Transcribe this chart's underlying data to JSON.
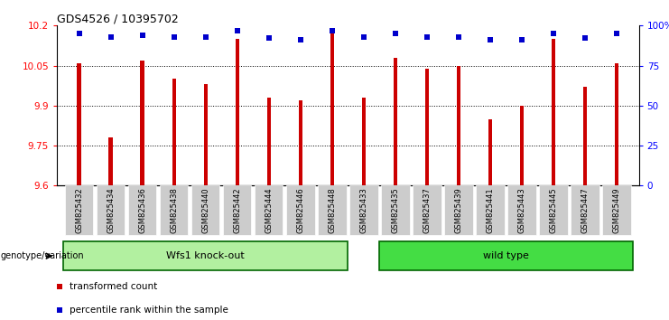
{
  "title": "GDS4526 / 10395702",
  "samples": [
    "GSM825432",
    "GSM825434",
    "GSM825436",
    "GSM825438",
    "GSM825440",
    "GSM825442",
    "GSM825444",
    "GSM825446",
    "GSM825448",
    "GSM825433",
    "GSM825435",
    "GSM825437",
    "GSM825439",
    "GSM825441",
    "GSM825443",
    "GSM825445",
    "GSM825447",
    "GSM825449"
  ],
  "transformed_counts": [
    10.06,
    9.78,
    10.07,
    10.0,
    9.98,
    10.15,
    9.93,
    9.92,
    10.19,
    9.93,
    10.08,
    10.04,
    10.05,
    9.85,
    9.9,
    10.15,
    9.97,
    10.06
  ],
  "percentile_values": [
    95,
    93,
    94,
    93,
    93,
    97,
    92,
    91,
    97,
    93,
    95,
    93,
    93,
    91,
    91,
    95,
    92,
    95
  ],
  "group1_size": 9,
  "group2_size": 9,
  "group1_label": "Wfs1 knock-out",
  "group2_label": "wild type",
  "group1_color": "#b2f0a0",
  "group2_color": "#44dd44",
  "group_border_color": "#006600",
  "ymin": 9.6,
  "ymax": 10.2,
  "yticks": [
    9.6,
    9.75,
    9.9,
    10.05,
    10.2
  ],
  "right_yticks": [
    0,
    25,
    50,
    75,
    100
  ],
  "bar_color": "#cc0000",
  "dot_color": "#0000cc",
  "xtick_bg_color": "#cccccc",
  "legend_items": [
    "transformed count",
    "percentile rank within the sample"
  ],
  "legend_colors": [
    "#cc0000",
    "#0000cc"
  ],
  "group_label": "genotype/variation",
  "bar_width": 0.12,
  "title_fontsize": 9,
  "tick_fontsize": 7.5,
  "label_fontsize": 7.5
}
